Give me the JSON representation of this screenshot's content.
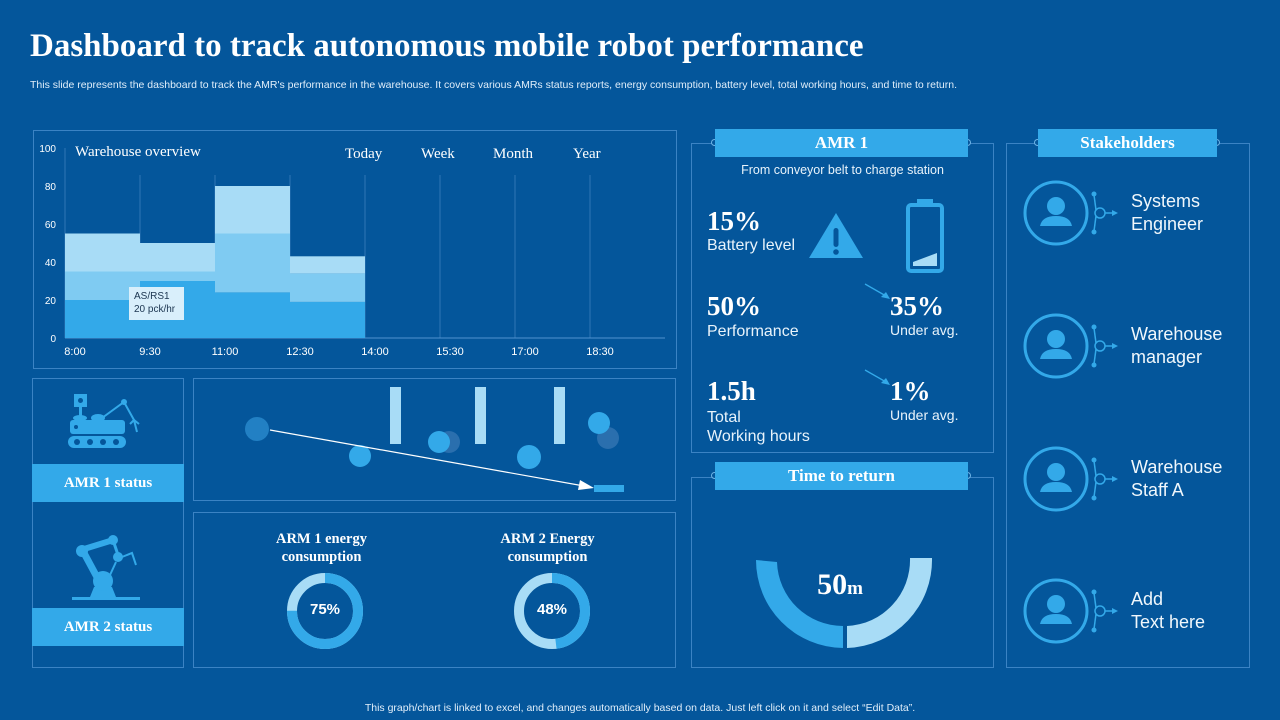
{
  "title": "Dashboard to track autonomous mobile robot performance",
  "subtitle": "This slide represents the dashboard to track the AMR's performance in the warehouse. It covers various AMRs status reports, energy consumption, battery level, total working hours, and time to return.",
  "footer": "This graph/chart is linked to excel, and changes automatically based on data. Just left click on it and select “Edit Data”.",
  "colors": {
    "background": "#04569b",
    "accent": "#33a9e9",
    "light": "#a8dcf6",
    "mid": "#7fcbf2"
  },
  "chart_data": {
    "type": "bar",
    "title": "Warehouse overview",
    "stacked": true,
    "categories": [
      "8:00",
      "9:30",
      "11:00",
      "12:30",
      "14:00",
      "15:30",
      "17:00",
      "18:30"
    ],
    "series": [
      {
        "values": [
          20,
          30,
          24,
          19,
          0,
          0,
          0,
          0
        ]
      },
      {
        "values": [
          15,
          5,
          31,
          15,
          0,
          0,
          0,
          0
        ]
      },
      {
        "values": [
          20,
          15,
          25,
          9,
          0,
          0,
          0,
          0
        ]
      }
    ],
    "ylim": [
      0,
      100
    ],
    "yticks": [
      0,
      20,
      40,
      60,
      80,
      100
    ],
    "grid": true,
    "annotation": {
      "line1": "AS/RS1",
      "line2": "20 pck/hr"
    },
    "period_tabs": [
      "Today",
      "Week",
      "Month",
      "Year"
    ]
  },
  "status": {
    "amr1": "AMR 1 status",
    "amr2": "AMR 2 status"
  },
  "energy": [
    {
      "title1": "ARM 1 energy",
      "title2": "consumption",
      "value": 75,
      "label": "75%"
    },
    {
      "title1": "ARM 2 Energy",
      "title2": "consumption",
      "value": 48,
      "label": "48%"
    }
  ],
  "amr": {
    "header": "AMR 1",
    "route": "From conveyor belt to charge station",
    "battery_value": "15%",
    "battery_label": "Battery level",
    "battery_level": 15,
    "perf_value": "50%",
    "perf_label": "Performance",
    "perf_delta": "35%",
    "perf_delta_label": "Under avg.",
    "hours_value": "1.5h",
    "hours_label1": "Total",
    "hours_label2": "Working hours",
    "hours_delta": "1%",
    "hours_delta_label": "Under avg."
  },
  "time_to_return": {
    "header": "Time to return",
    "value": "50",
    "unit": "m"
  },
  "stakeholders": {
    "header": "Stakeholders",
    "items": [
      {
        "line1": "Systems",
        "line2": "Engineer"
      },
      {
        "line1": "Warehouse",
        "line2": "manager"
      },
      {
        "line1": "Warehouse",
        "line2": "Staff A"
      },
      {
        "line1": "Add",
        "line2": "Text here"
      }
    ]
  }
}
